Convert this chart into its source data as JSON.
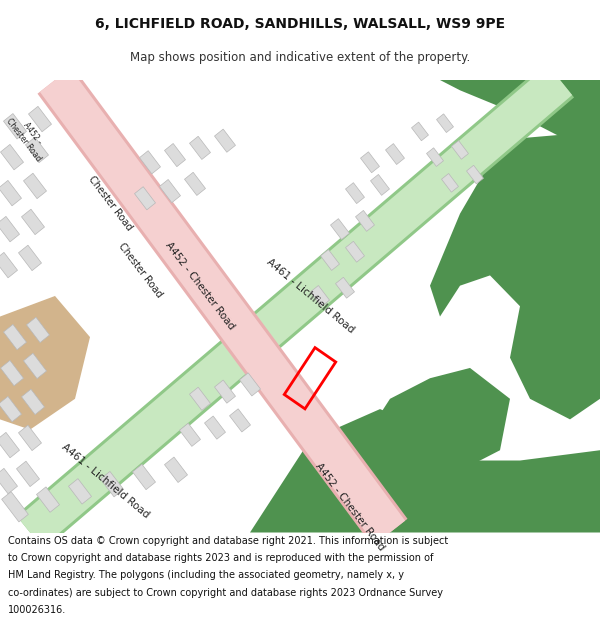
{
  "title_line1": "6, LICHFIELD ROAD, SANDHILLS, WALSALL, WS9 9PE",
  "title_line2": "Map shows position and indicative extent of the property.",
  "footer_lines": [
    "Contains OS data © Crown copyright and database right 2021. This information is subject",
    "to Crown copyright and database rights 2023 and is reproduced with the permission of",
    "HM Land Registry. The polygons (including the associated geometry, namely x, y",
    "co-ordinates) are subject to Crown copyright and database rights 2023 Ordnance Survey",
    "100026316."
  ],
  "bg_color": "#ffffff",
  "map_bg": "#f8f8f8",
  "road_pink_fill": "#f5d0d0",
  "road_pink_edge": "#e8b0b0",
  "road_green_fill": "#c8e8c0",
  "road_green_edge": "#90c888",
  "green_area": "#4f924f",
  "building_fill": "#dcdcdc",
  "building_edge": "#b8b8b8",
  "tan_fill": "#d2b48c",
  "property_red": "#ff0000",
  "text_dark": "#222222"
}
